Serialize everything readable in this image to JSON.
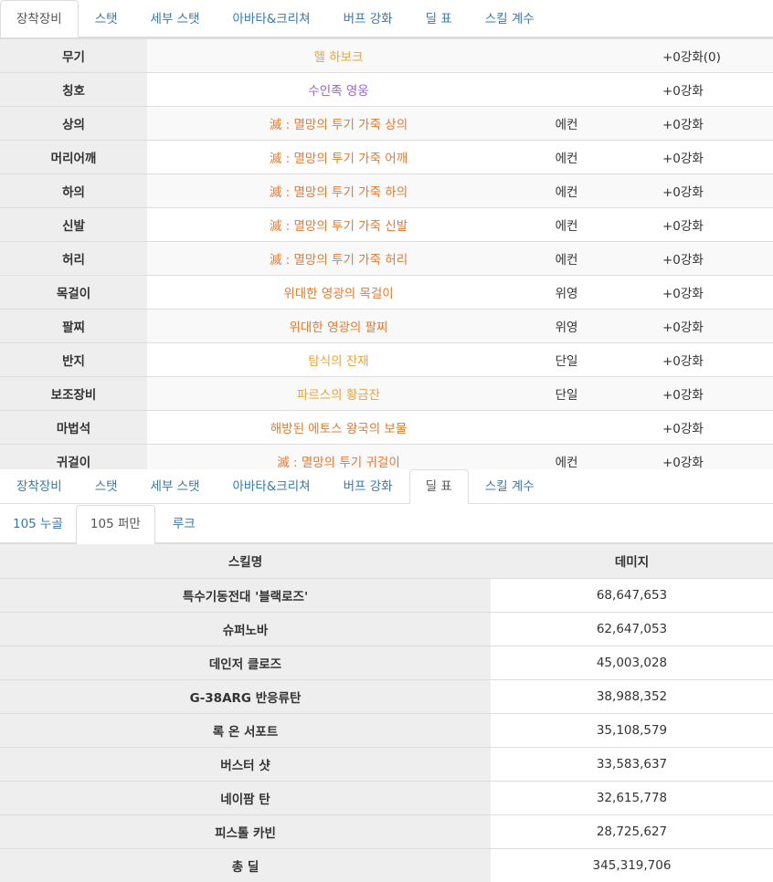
{
  "tabs": [
    "장착장비",
    "스탯",
    "세부 스탯",
    "아바타&크리쳐",
    "버프 강화",
    "딜 표",
    "스킬 계수"
  ],
  "equipment": [
    {
      "slot": "무기",
      "name": "헬 하보크",
      "set": "",
      "enh": "+0강화(0)",
      "color": "#e8a33a"
    },
    {
      "slot": "칭호",
      "name": "수인족 영웅",
      "set": "",
      "enh": "+0강화",
      "color": "#9b5fd4"
    },
    {
      "slot": "상의",
      "name": "滅 : 멸망의 투기 가죽 상의",
      "set": "에컨",
      "enh": "+0강화",
      "color": "#e5792f"
    },
    {
      "slot": "머리어깨",
      "name": "滅 : 멸망의 투기 가죽 어깨",
      "set": "에컨",
      "enh": "+0강화",
      "color": "#e5792f"
    },
    {
      "slot": "하의",
      "name": "滅 : 멸망의 투기 가죽 하의",
      "set": "에컨",
      "enh": "+0강화",
      "color": "#e5792f"
    },
    {
      "slot": "신발",
      "name": "滅 : 멸망의 투기 가죽 신발",
      "set": "에컨",
      "enh": "+0강화",
      "color": "#e5792f"
    },
    {
      "slot": "허리",
      "name": "滅 : 멸망의 투기 가죽 허리",
      "set": "에컨",
      "enh": "+0강화",
      "color": "#e5792f"
    },
    {
      "slot": "목걸이",
      "name": "위대한 영광의 목걸이",
      "set": "위영",
      "enh": "+0강화",
      "color": "#e5792f"
    },
    {
      "slot": "팔찌",
      "name": "위대한 영광의 팔찌",
      "set": "위영",
      "enh": "+0강화",
      "color": "#e5792f"
    },
    {
      "slot": "반지",
      "name": "탐식의 잔재",
      "set": "단일",
      "enh": "+0강화",
      "color": "#e8a33a"
    },
    {
      "slot": "보조장비",
      "name": "파르스의 황금잔",
      "set": "단일",
      "enh": "+0강화",
      "color": "#e8a33a"
    },
    {
      "slot": "마법석",
      "name": "해방된 에토스 왕국의 보물",
      "set": "",
      "enh": "+0강화",
      "color": "#e5792f"
    },
    {
      "slot": "귀걸이",
      "name": "滅 : 멸망의 투기 귀걸이",
      "set": "에컨",
      "enh": "+0강화",
      "color": "#e5792f"
    }
  ],
  "subtabs": [
    "105 누골",
    "105 퍼만",
    "루크"
  ],
  "deal": {
    "headers": [
      "스킬명",
      "데미지"
    ],
    "rows": [
      [
        "특수기동전대 '블랙로즈'",
        "68,647,653"
      ],
      [
        "슈퍼노바",
        "62,647,053"
      ],
      [
        "데인저 클로즈",
        "45,003,028"
      ],
      [
        "G-38ARG 반응류탄",
        "38,988,352"
      ],
      [
        "록 온 서포트",
        "35,108,579"
      ],
      [
        "버스터 샷",
        "33,583,637"
      ],
      [
        "네이팜 탄",
        "32,615,778"
      ],
      [
        "피스톨 카빈",
        "28,725,627"
      ],
      [
        "총 딜",
        "345,319,706"
      ]
    ]
  }
}
